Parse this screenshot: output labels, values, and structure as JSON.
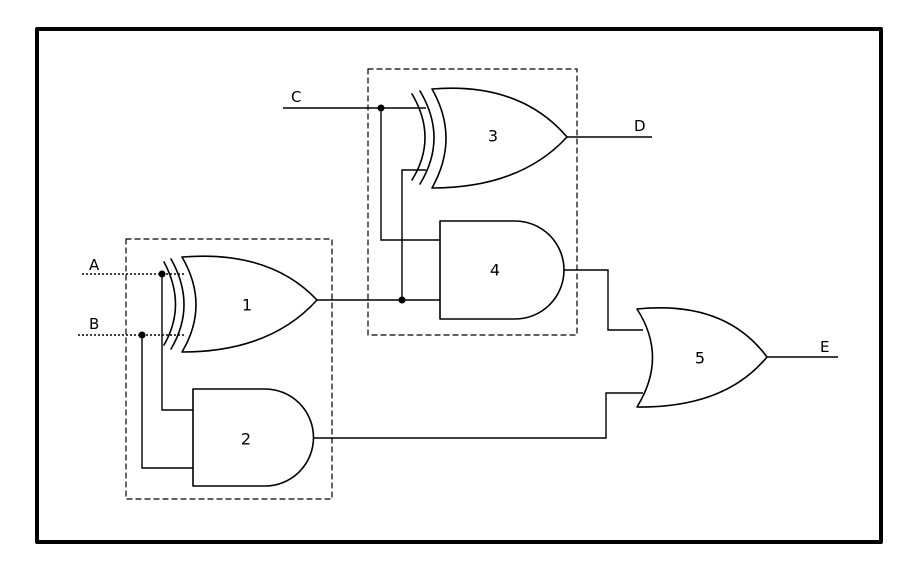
{
  "colors": {
    "ink": "#000000",
    "background": "#ffffff"
  },
  "signals": {
    "a": "A",
    "b": "B",
    "c": "C",
    "d": "D",
    "e": "E"
  },
  "gates": [
    {
      "id": "1",
      "type": "XOR"
    },
    {
      "id": "2",
      "type": "AND"
    },
    {
      "id": "3",
      "type": "XOR"
    },
    {
      "id": "4",
      "type": "AND"
    },
    {
      "id": "5",
      "type": "OR"
    }
  ],
  "half_adders": [
    {
      "gates": [
        "1",
        "2"
      ]
    },
    {
      "gates": [
        "3",
        "4"
      ]
    }
  ]
}
